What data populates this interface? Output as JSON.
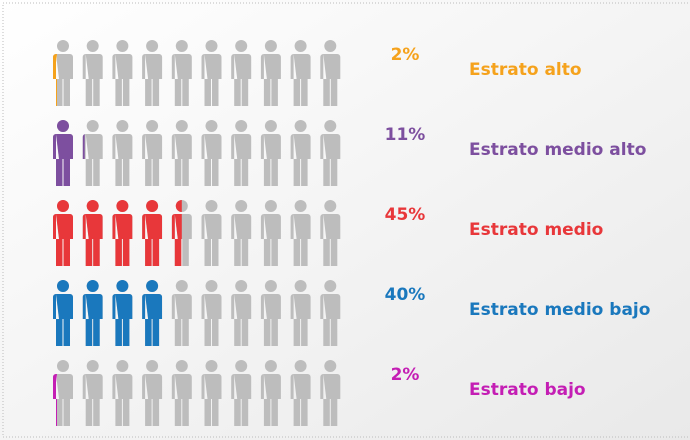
{
  "chart_data": {
    "type": "pictogram",
    "categories": [
      "Estrato alto",
      "Estrato medio alto",
      "Estrato medio",
      "Estrato medio bajo",
      "Estrato bajo"
    ],
    "values": [
      2,
      11,
      45,
      40,
      2
    ],
    "value_labels": [
      "2%",
      "11%",
      "45%",
      "40%",
      "2%"
    ],
    "colors": [
      "#f5a21c",
      "#7d4f9f",
      "#e8373a",
      "#1a78bd",
      "#c41eb4"
    ],
    "icon_color": "#bdbdbd"
  }
}
